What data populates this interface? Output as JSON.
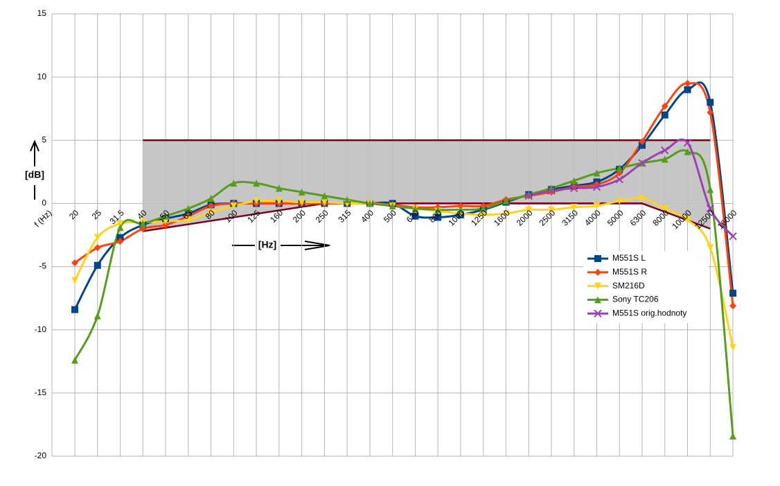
{
  "chart_data": {
    "type": "line",
    "x_label": "f (Hz)",
    "annotations": {
      "y_unit": "[dB]",
      "x_unit": "[Hz]"
    },
    "categories": [
      "20",
      "25",
      "31.5",
      "40",
      "50",
      "63",
      "80",
      "100",
      "125",
      "160",
      "200",
      "250",
      "315",
      "400",
      "500",
      "630",
      "800",
      "1000",
      "1250",
      "1600",
      "2000",
      "2500",
      "3150",
      "4000",
      "5000",
      "6300",
      "8000",
      "10000",
      "12500",
      "16000"
    ],
    "ylim": [
      -20,
      15
    ],
    "yticks": [
      -20,
      -15,
      -10,
      -5,
      0,
      5,
      10,
      15
    ],
    "grid": true,
    "tolerance": {
      "x": [
        "40",
        "250",
        "6300",
        "12500"
      ],
      "upper": 5,
      "lower": [
        -2.2,
        0,
        0,
        -2
      ],
      "flat_x": [
        "630",
        "6300"
      ],
      "flat": 0,
      "fill": "#c0c0c0",
      "line_color": "#7e0021"
    },
    "series": [
      {
        "name": "M551S L",
        "color": "#004586",
        "marker": "square",
        "values": [
          -8.4,
          -4.9,
          -2.7,
          -1.7,
          -1.2,
          -0.8,
          -0.1,
          0,
          0,
          0,
          0,
          0,
          0,
          0,
          0,
          -1,
          -1.1,
          -0.9,
          -0.5,
          0.1,
          0.7,
          1.1,
          1.4,
          1.7,
          2.7,
          4.6,
          7,
          9,
          8,
          -7.1
        ]
      },
      {
        "name": "M551S R",
        "color": "#ff420e",
        "marker": "diamond",
        "values": [
          -4.7,
          -3.5,
          -3,
          -2,
          -1.7,
          -1,
          -0.2,
          0,
          0,
          0,
          0,
          0,
          0,
          0,
          -0.1,
          -0.3,
          -0.3,
          -0.2,
          -0.2,
          0.3,
          0.6,
          0.9,
          1.3,
          1.5,
          2.4,
          4.9,
          7.7,
          9.5,
          7.2,
          -8.1
        ]
      },
      {
        "name": "SM216D",
        "color": "#ffd320",
        "marker": "down",
        "values": [
          -6.1,
          -2.7,
          -1.6,
          -1.5,
          -1.4,
          -1.3,
          -0.7,
          -0.2,
          0.2,
          0.2,
          0.1,
          0.1,
          0,
          0,
          -0.2,
          -0.4,
          -0.6,
          -0.8,
          -0.9,
          -0.8,
          -0.5,
          -0.5,
          -0.3,
          -0.2,
          0.2,
          0.4,
          -0.4,
          -1.3,
          -3.5,
          -11.4
        ]
      },
      {
        "name": "Sony TC206",
        "color": "#579d1c",
        "marker": "up",
        "values": [
          -12.4,
          -8.9,
          -1.9,
          -1.6,
          -1,
          -0.4,
          0.4,
          1.6,
          1.6,
          1.2,
          0.9,
          0.6,
          0.3,
          0,
          -0.2,
          -0.4,
          -0.5,
          -0.5,
          -0.4,
          0.2,
          0.7,
          1.2,
          1.8,
          2.4,
          2.8,
          3.2,
          3.5,
          4.1,
          1.1,
          -18.4
        ]
      },
      {
        "name": "M551S  orig.hodnoty",
        "color": "#a03fb0",
        "marker": "x",
        "values": [
          null,
          null,
          null,
          null,
          null,
          null,
          null,
          null,
          null,
          null,
          null,
          null,
          null,
          null,
          null,
          null,
          null,
          null,
          null,
          null,
          0.6,
          1.0,
          1.2,
          1.3,
          1.9,
          3.2,
          4.2,
          4.8,
          -0.4,
          -2.6
        ]
      }
    ]
  }
}
